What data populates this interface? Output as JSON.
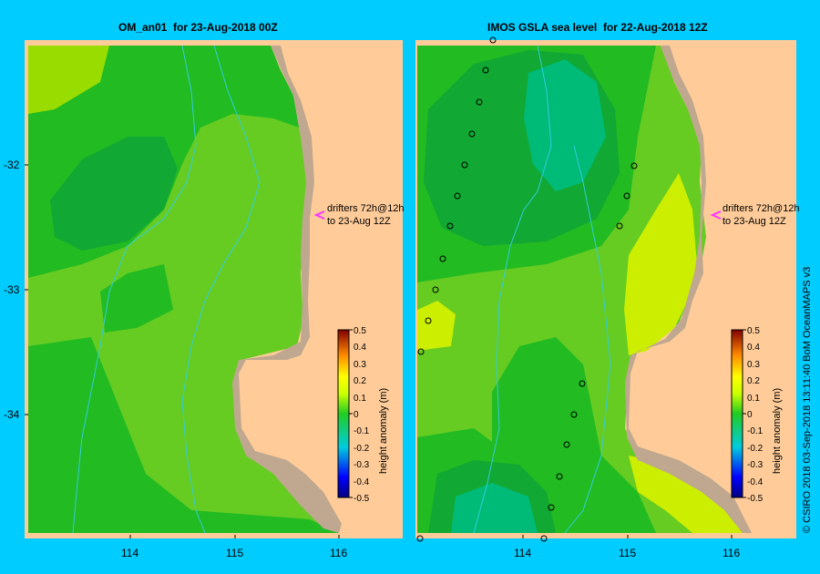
{
  "left_panel": {
    "title": "OM_an01  for 23-Aug-2018 00Z",
    "annotation_line1": "drifters 72h@12h",
    "annotation_line2": "to 23-Aug 12Z"
  },
  "right_panel": {
    "title": "IMOS GSLA sea level  for 22-Aug-2018 12Z",
    "annotation_line1": "drifters 72h@12h",
    "annotation_line2": "to 23-Aug 12Z"
  },
  "axes": {
    "lat_ticks": [
      "-32",
      "-33",
      "-34"
    ],
    "lon_ticks": [
      "114",
      "115",
      "116"
    ]
  },
  "colorbar": {
    "label": "height anomaly (m)",
    "ticks": [
      "0.5",
      "0.4",
      "0.3",
      "0.2",
      "0.1",
      "0",
      "-0.1",
      "-0.2",
      "-0.3",
      "-0.4",
      "-0.5"
    ]
  },
  "credit": "© CSIRO 2018   03-Sep-2018 13:11:40 BoM OceanMAPS v3",
  "colors": {
    "background": "#00ccff",
    "land": "#ffcc99",
    "coast": "#bfa88f",
    "marker": "#ff33ff",
    "isobath": "#33ccdd"
  }
}
